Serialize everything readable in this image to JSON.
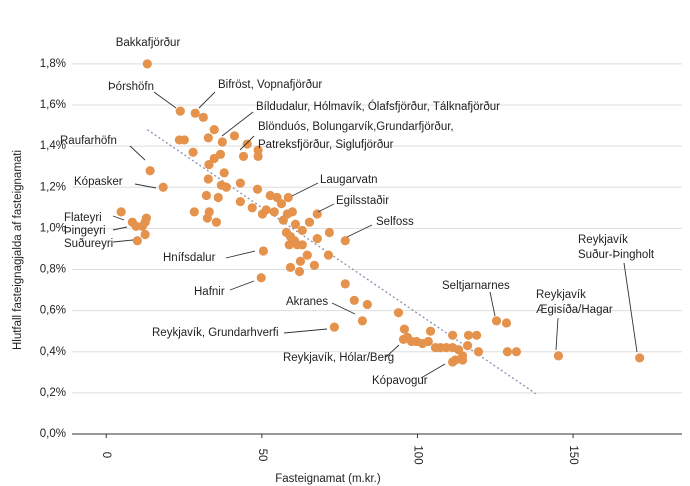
{
  "chart_data": {
    "type": "scatter",
    "x_label": "Fasteignamat (m.kr.)",
    "y_label": "Hlutfall fasteignagjalda af fasteignamati",
    "color": "#e4924c",
    "x": [
      13.2,
      23.8,
      28.6,
      31.2,
      23.5,
      25.1,
      27.9,
      34.7,
      32.8,
      37.3,
      41.2,
      45.3,
      44.1,
      48.8,
      48.8,
      34.7,
      36.7,
      33.0,
      37.9,
      32.8,
      37.0,
      38.6,
      43.1,
      32.2,
      36.0,
      43.1,
      46.9,
      48.6,
      52.7,
      54.9,
      58.5,
      56.3,
      54.0,
      50.2,
      51.4,
      58.2,
      59.8,
      67.8,
      56.9,
      60.8,
      65.3,
      63.0,
      57.9,
      59.2,
      60.5,
      61.4,
      63.0,
      58.8,
      64.6,
      66.9,
      71.4,
      71.7,
      67.8,
      62.4,
      59.2,
      62.1,
      50.5,
      49.8,
      33.1,
      32.5,
      28.3,
      35.4,
      14.1,
      18.3,
      4.8,
      8.4,
      9.6,
      11.6,
      12.9,
      12.5,
      12.5,
      10.0,
      76.8,
      76.8,
      79.7,
      83.9,
      82.3,
      73.3,
      93.9,
      95.8,
      96.8,
      95.5,
      98.1,
      99.7,
      101.6,
      103.5,
      104.2,
      107.4,
      109.3,
      111.3,
      111.3,
      113.2,
      116.1,
      116.4,
      119.0,
      119.6,
      114.5,
      112.2,
      111.3,
      114.5,
      125.4,
      128.6,
      128.9,
      131.8,
      145.3,
      171.4,
      105.8
    ],
    "values": [
      1.8,
      1.57,
      1.56,
      1.54,
      1.43,
      1.43,
      1.37,
      1.48,
      1.44,
      1.42,
      1.45,
      1.41,
      1.35,
      1.38,
      1.35,
      1.34,
      1.36,
      1.31,
      1.27,
      1.24,
      1.21,
      1.2,
      1.22,
      1.16,
      1.15,
      1.13,
      1.1,
      1.19,
      1.16,
      1.15,
      1.15,
      1.12,
      1.08,
      1.07,
      1.09,
      1.07,
      1.08,
      1.07,
      1.04,
      1.02,
      1.03,
      0.99,
      0.98,
      0.96,
      0.94,
      0.92,
      0.92,
      0.92,
      0.87,
      0.82,
      0.87,
      0.98,
      0.95,
      0.84,
      0.81,
      0.79,
      0.89,
      0.76,
      1.08,
      1.05,
      1.08,
      1.03,
      1.28,
      1.2,
      1.08,
      1.03,
      1.01,
      1.01,
      1.05,
      1.03,
      0.97,
      0.94,
      0.94,
      0.73,
      0.65,
      0.63,
      0.55,
      0.52,
      0.59,
      0.51,
      0.47,
      0.46,
      0.45,
      0.45,
      0.44,
      0.45,
      0.5,
      0.42,
      0.42,
      0.42,
      0.48,
      0.41,
      0.43,
      0.48,
      0.48,
      0.4,
      0.38,
      0.36,
      0.35,
      0.36,
      0.55,
      0.54,
      0.4,
      0.4,
      0.38,
      0.37,
      0.42
    ],
    "trendline": {
      "x": [
        13.2,
        138.6
      ],
      "y": [
        1.48,
        0.19
      ],
      "color": "#8b8fb0"
    },
    "xlim": [
      -11,
      185
    ],
    "ylim": [
      0,
      1.95
    ],
    "xticks": [
      0,
      50,
      100,
      150
    ],
    "yticks": [
      {
        "value": 0,
        "label": "0,0%"
      },
      {
        "value": 0.2,
        "label": "0,2%"
      },
      {
        "value": 0.4,
        "label": "0,4%"
      },
      {
        "value": 0.6,
        "label": "0,6%"
      },
      {
        "value": 0.8,
        "label": "0,8%"
      },
      {
        "value": 1.0,
        "label": "1,0%"
      },
      {
        "value": 1.2,
        "label": "1,2%"
      },
      {
        "value": 1.4,
        "label": "1,4%"
      },
      {
        "value": 1.6,
        "label": "1,6%"
      },
      {
        "value": 1.8,
        "label": "1,8%"
      }
    ],
    "grid": true,
    "annotations": [
      [
        "Bakkafjörður"
      ],
      [
        "Þórshöfn"
      ],
      [
        "Bifröst, Vopnafjörður"
      ],
      [
        "Bíldudalur, Hólmavík, Ólafsfjörður, Tálknafjörður"
      ],
      [
        "Blönduós, Bolungarvík,Grundarfjörður,",
        "Patreksfjörður, Siglufjörður"
      ],
      [
        "Raufarhöfn"
      ],
      [
        "Kópasker"
      ],
      [
        "Laugarvatn"
      ],
      [
        "Egilsstaðir"
      ],
      [
        "Selfoss"
      ],
      [
        "Flateyri"
      ],
      [
        "Þingeyri"
      ],
      [
        "Suðureyri"
      ],
      [
        "Hnífsdalur"
      ],
      [
        "Hafnir"
      ],
      [
        "Akranes"
      ],
      [
        "Reykjavík, Grundarhverfi"
      ],
      [
        "Reykjavík, Hólar/Berg"
      ],
      [
        "Kópavogur"
      ],
      [
        "Seltjarnarnes"
      ],
      [
        "Reykjavík",
        "Ægisíða/Hagar"
      ],
      [
        "Reykjavík",
        "Suður-Þingholt"
      ]
    ]
  }
}
